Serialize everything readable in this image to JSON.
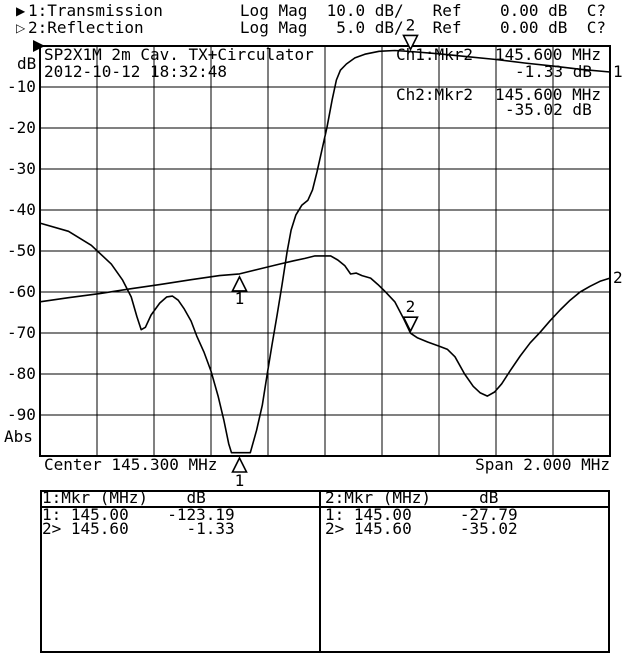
{
  "accent_color": "#000000",
  "background_color": "#ffffff",
  "header": {
    "line1_icon": "filled-right-triangle",
    "line2_icon": "open-right-triangle",
    "line1": "1:Transmission        Log Mag  10.0 dB/   Ref    0.00 dB  C?",
    "line2": "2:Reflection          Log Mag   5.0 dB/   Ref    0.00 dB  C?"
  },
  "annotations": {
    "title": "SP2X1M 2m Cav. TX+Circulator",
    "datetime": "2012-10-12 18:32:48",
    "ch1_marker_label": "Ch1:Mkr2",
    "ch1_marker_freq": "145.600 MHz",
    "ch1_marker_value": "-1.33 dB",
    "ch2_marker_label": "Ch2:Mkr2",
    "ch2_marker_freq": "145.600 MHz",
    "ch2_marker_value": "-35.02 dB"
  },
  "y_axis": {
    "unit_label": "dB",
    "labels": [
      "-10",
      "-20",
      "-30",
      "-40",
      "-50",
      "-60",
      "-70",
      "-80",
      "-90"
    ],
    "bottom_label": "Abs"
  },
  "x_axis_labels": {
    "center": "Center 145.300 MHz",
    "span": "Span 2.000 MHz"
  },
  "marker_table": {
    "left": {
      "header": "1:Mkr (MHz)    dB",
      "rows": [
        "1: 145.00    -123.19",
        "2> 145.60      -1.33"
      ]
    },
    "right": {
      "header": "2:Mkr (MHz)     dB",
      "rows": [
        "1: 145.00     -27.79",
        "2> 145.60     -35.02"
      ]
    }
  },
  "chart_data": {
    "type": "line",
    "title": "SP2X1M 2m Cav. TX+Circulator",
    "timestamp": "2012-10-12 18:32:48",
    "grid": {
      "x_divisions": 10,
      "y_divisions": 10,
      "style": "solid"
    },
    "x_axis": {
      "unit": "MHz",
      "center": 145.3,
      "span": 2.0,
      "min": 144.3,
      "max": 146.3
    },
    "y_axis_ch1": {
      "unit": "dB",
      "ref_db": 0.0,
      "db_per_div": 10.0,
      "min": -100,
      "max": 0
    },
    "y_axis_ch2": {
      "unit": "dB",
      "ref_db": 0.0,
      "db_per_div": 5.0,
      "min": -50,
      "max": 0
    },
    "series": [
      {
        "name": "1:Transmission",
        "channel": 1,
        "scale": "Log Mag 10.0 dB/",
        "points": [
          [
            144.3,
            -43.2
          ],
          [
            144.4,
            -45.2
          ],
          [
            144.48,
            -48.6
          ],
          [
            144.55,
            -53.2
          ],
          [
            144.59,
            -57.1
          ],
          [
            144.62,
            -61.2
          ],
          [
            144.64,
            -66.0
          ],
          [
            144.655,
            -69.2
          ],
          [
            144.67,
            -68.6
          ],
          [
            144.69,
            -65.6
          ],
          [
            144.72,
            -62.7
          ],
          [
            144.745,
            -61.2
          ],
          [
            144.765,
            -61.0
          ],
          [
            144.785,
            -62.0
          ],
          [
            144.805,
            -64.0
          ],
          [
            144.83,
            -67.1
          ],
          [
            144.85,
            -70.7
          ],
          [
            144.875,
            -74.6
          ],
          [
            144.9,
            -79.3
          ],
          [
            144.925,
            -85.4
          ],
          [
            144.945,
            -91.2
          ],
          [
            144.962,
            -97.0
          ],
          [
            144.972,
            -99.2
          ],
          [
            145.038,
            -99.2
          ],
          [
            145.06,
            -93.7
          ],
          [
            145.08,
            -87.6
          ],
          [
            145.097,
            -80.2
          ],
          [
            145.114,
            -72.9
          ],
          [
            145.132,
            -65.6
          ],
          [
            145.149,
            -58.3
          ],
          [
            145.167,
            -50.2
          ],
          [
            145.181,
            -44.9
          ],
          [
            145.198,
            -41.2
          ],
          [
            145.219,
            -38.8
          ],
          [
            145.24,
            -37.6
          ],
          [
            145.256,
            -35.1
          ],
          [
            145.272,
            -30.7
          ],
          [
            145.289,
            -25.4
          ],
          [
            145.307,
            -19.8
          ],
          [
            145.325,
            -13.2
          ],
          [
            145.34,
            -8.3
          ],
          [
            145.354,
            -5.9
          ],
          [
            145.375,
            -4.4
          ],
          [
            145.405,
            -2.9
          ],
          [
            145.44,
            -2.0
          ],
          [
            145.49,
            -1.3
          ],
          [
            145.545,
            -1.1
          ],
          [
            145.6,
            -1.33
          ],
          [
            145.7,
            -1.9
          ],
          [
            145.8,
            -2.6
          ],
          [
            145.9,
            -3.3
          ],
          [
            146.0,
            -4.15
          ],
          [
            146.1,
            -4.9
          ],
          [
            146.2,
            -5.7
          ],
          [
            146.3,
            -6.35
          ]
        ],
        "note": "notch true depth -123.19 dB at 145.00 MHz, clipped at display floor"
      },
      {
        "name": "2:Reflection",
        "channel": 2,
        "scale": "Log Mag 5.0 dB/",
        "points": [
          [
            144.3,
            -31.2
          ],
          [
            144.4,
            -30.7
          ],
          [
            144.51,
            -30.2
          ],
          [
            144.62,
            -29.6
          ],
          [
            144.72,
            -29.1
          ],
          [
            144.83,
            -28.5
          ],
          [
            144.93,
            -28.0
          ],
          [
            145.0,
            -27.79
          ],
          [
            145.07,
            -27.2
          ],
          [
            145.14,
            -26.6
          ],
          [
            145.19,
            -26.2
          ],
          [
            145.23,
            -25.9
          ],
          [
            145.265,
            -25.6
          ],
          [
            145.32,
            -25.6
          ],
          [
            145.345,
            -26.1
          ],
          [
            145.37,
            -26.8
          ],
          [
            145.39,
            -27.8
          ],
          [
            145.41,
            -27.7
          ],
          [
            145.43,
            -28.0
          ],
          [
            145.46,
            -28.3
          ],
          [
            145.486,
            -29.1
          ],
          [
            145.51,
            -29.9
          ],
          [
            145.545,
            -31.2
          ],
          [
            145.575,
            -33.2
          ],
          [
            145.6,
            -35.02
          ],
          [
            145.625,
            -35.6
          ],
          [
            145.66,
            -36.1
          ],
          [
            145.7,
            -36.6
          ],
          [
            145.73,
            -37.0
          ],
          [
            145.756,
            -37.9
          ],
          [
            145.79,
            -40.0
          ],
          [
            145.82,
            -41.5
          ],
          [
            145.845,
            -42.3
          ],
          [
            145.87,
            -42.7
          ],
          [
            145.895,
            -42.2
          ],
          [
            145.92,
            -41.2
          ],
          [
            145.95,
            -39.6
          ],
          [
            145.985,
            -37.8
          ],
          [
            146.02,
            -36.2
          ],
          [
            146.055,
            -34.9
          ],
          [
            146.09,
            -33.5
          ],
          [
            146.125,
            -32.2
          ],
          [
            146.16,
            -31.0
          ],
          [
            146.195,
            -30.0
          ],
          [
            146.23,
            -29.3
          ],
          [
            146.265,
            -28.7
          ],
          [
            146.3,
            -28.3
          ]
        ]
      }
    ],
    "markers": [
      {
        "label": "1",
        "trace": 1,
        "channel": 1,
        "freq_mhz": 145.0,
        "value_db": -123.19,
        "placement": "below-axis"
      },
      {
        "label": "2",
        "trace": 1,
        "channel": 1,
        "freq_mhz": 145.6,
        "value_db": -1.33,
        "placement": "above"
      },
      {
        "label": "1",
        "trace": 2,
        "channel": 2,
        "freq_mhz": 145.0,
        "value_db": -27.79,
        "placement": "below"
      },
      {
        "label": "2",
        "trace": 2,
        "channel": 2,
        "freq_mhz": 145.6,
        "value_db": -35.02,
        "placement": "above"
      }
    ],
    "trace_end_labels": [
      {
        "series_index": 0,
        "label": "1"
      },
      {
        "series_index": 1,
        "label": "2"
      }
    ]
  }
}
